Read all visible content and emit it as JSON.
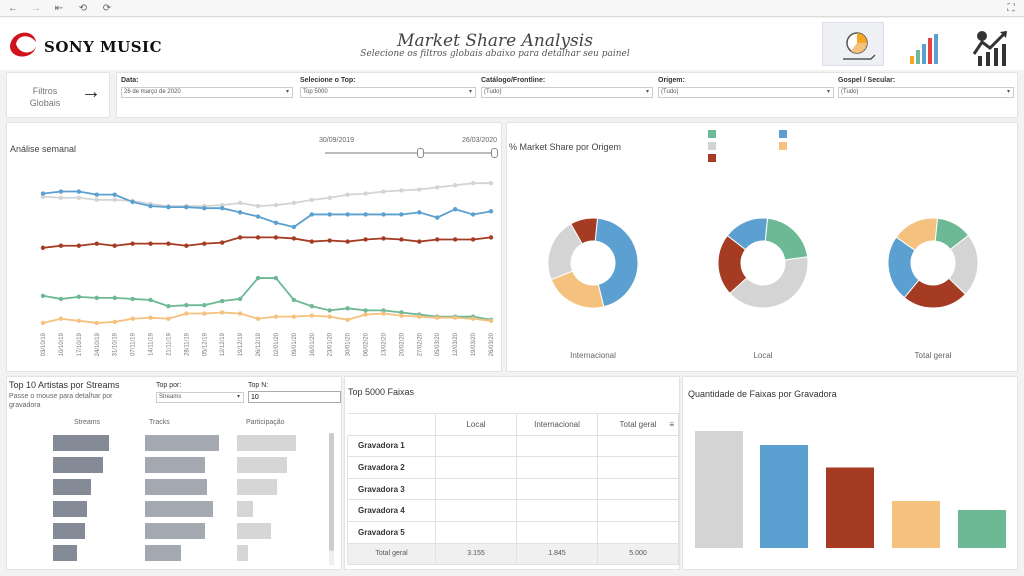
{
  "header": {
    "brand": "SONY MUSIC",
    "title": "Market Share Analysis",
    "subtitle": "Selecione os filtros globais abaixo para detalhar seu painel"
  },
  "filters": {
    "label": "Filtros Globais",
    "items": [
      {
        "label": "Data:",
        "value": "26 de março de 2020"
      },
      {
        "label": "Selecione o Top:",
        "value": "Top 5000"
      },
      {
        "label": "Catálogo/Frontline:",
        "value": "(Tudo)"
      },
      {
        "label": "Origem:",
        "value": "(Tudo)"
      },
      {
        "label": "Gospel / Secular:",
        "value": "(Tudo)"
      }
    ]
  },
  "weekly": {
    "title": "Análise semanal",
    "range_start": "30/09/2019",
    "range_end": "26/03/2020"
  },
  "origin": {
    "title": "% Market Share por Origem"
  },
  "colors": {
    "gray": "#d4d4d4",
    "blue": "#5ba0d0",
    "red": "#a43b22",
    "green": "#6db895",
    "orange": "#f5c17f",
    "bar": "#848a96"
  },
  "chart_data": [
    {
      "type": "line",
      "x": [
        "03/10/19",
        "10/10/19",
        "17/10/19",
        "24/10/19",
        "31/10/19",
        "07/11/19",
        "14/11/19",
        "21/11/19",
        "28/11/19",
        "05/12/19",
        "12/12/19",
        "19/12/19",
        "26/12/19",
        "02/01/20",
        "09/01/20",
        "16/01/20",
        "23/01/20",
        "30/01/20",
        "06/02/20",
        "13/02/20",
        "20/02/20",
        "27/02/20",
        "05/03/20",
        "12/03/20",
        "19/03/20",
        "26/03/20"
      ],
      "series": [
        {
          "color": "#d4d4d4",
          "values": [
            223,
            222,
            222,
            220,
            220,
            219,
            216,
            214,
            214,
            214,
            215,
            217,
            214,
            215,
            217,
            220,
            222,
            225,
            226,
            228,
            229,
            230,
            232,
            234,
            236,
            236
          ]
        },
        {
          "color": "#5ba0d0",
          "values": [
            226,
            228,
            228,
            225,
            225,
            218,
            214,
            213,
            213,
            212,
            212,
            208,
            204,
            198,
            194,
            206,
            206,
            206,
            206,
            206,
            206,
            208,
            203,
            211,
            206,
            209
          ]
        },
        {
          "color": "#a43b22",
          "values": [
            174,
            176,
            176,
            178,
            176,
            178,
            178,
            178,
            176,
            178,
            179,
            184,
            184,
            184,
            183,
            180,
            181,
            180,
            182,
            183,
            182,
            180,
            182,
            182,
            182,
            184
          ]
        },
        {
          "color": "#6db895",
          "values": [
            128,
            125,
            127,
            126,
            126,
            125,
            124,
            118,
            119,
            119,
            123,
            125,
            145,
            145,
            124,
            118,
            114,
            116,
            114,
            114,
            112,
            110,
            108,
            108,
            108,
            105
          ]
        },
        {
          "color": "#f5c17f",
          "values": [
            102,
            106,
            104,
            102,
            103,
            106,
            107,
            106,
            111,
            111,
            112,
            111,
            106,
            108,
            108,
            109,
            108,
            105,
            110,
            111,
            109,
            108,
            107,
            107,
            106,
            104
          ]
        }
      ]
    },
    {
      "type": "pie",
      "name": "Internacional",
      "values": [
        41,
        21,
        21,
        9
      ],
      "colors": [
        "#5ba0d0",
        "#f5c17f",
        "#d4d4d4",
        "#a43b22"
      ]
    },
    {
      "type": "pie",
      "name": "Local",
      "values": [
        21,
        40,
        22,
        16
      ],
      "colors": [
        "#6db895",
        "#d4d4d4",
        "#a43b22",
        "#5ba0d0"
      ]
    },
    {
      "type": "pie",
      "name": "Total geral",
      "values": [
        13,
        23,
        24,
        24,
        17
      ],
      "colors": [
        "#6db895",
        "#d4d4d4",
        "#a43b22",
        "#5ba0d0",
        "#f5c17f"
      ]
    },
    {
      "type": "bar",
      "title": "Quantidade de Faixas por Gravadora",
      "values": [
        1170,
        1030,
        805,
        470,
        380
      ],
      "colors": [
        "#d4d4d4",
        "#5ba0d0",
        "#a43b22",
        "#f5c17f",
        "#6db895"
      ]
    }
  ],
  "artists": {
    "title": "Top 10 Artistas por Streams",
    "subtitle": "Passe o mouse para detalhar por gravadora",
    "top_por_label": "Top por:",
    "top_por_value": "Streams",
    "topn_label": "Top N:",
    "topn_value": "10",
    "columns": [
      "Streams",
      "Tracks",
      "Participação"
    ],
    "streams": [
      0.74,
      0.66,
      0.5,
      0.45,
      0.43,
      0.32
    ],
    "tracks": [
      0.78,
      0.63,
      0.65,
      0.72,
      0.63,
      0.38
    ],
    "part": [
      0.69,
      0.59,
      0.47,
      0.19,
      0.4,
      0.13
    ]
  },
  "top5000": {
    "title": "Top 5000 Faixas",
    "headers": [
      "Local",
      "Internacional",
      "Total geral"
    ],
    "rows": [
      "Gravadora 1",
      "Gravadora 2",
      "Gravadora 3",
      "Gravadora 4",
      "Gravadora 5"
    ],
    "total_label": "Total geral",
    "totals": [
      "3.155",
      "1.845",
      "5.000"
    ]
  }
}
